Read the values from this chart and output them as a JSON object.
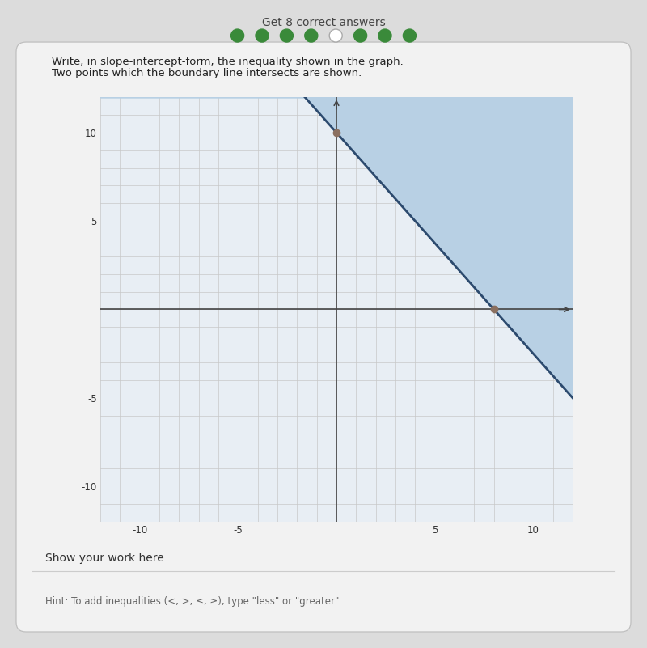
{
  "title_line1": "Write, in slope-intercept-form, the inequality shown in the graph.",
  "title_line2": "Two points which the boundary line intersects are shown.",
  "header_text": "Get 8 correct answers",
  "dots": [
    true,
    true,
    true,
    true,
    false,
    true,
    true,
    true
  ],
  "xlim": [
    -12,
    12
  ],
  "ylim": [
    -12,
    12
  ],
  "xticks": [
    -10,
    -5,
    5,
    10
  ],
  "yticks": [
    -10,
    -5,
    5,
    10
  ],
  "xtick_labels": [
    "-10",
    "-5",
    "5",
    "10"
  ],
  "ytick_labels": [
    "-10",
    "-5",
    "5",
    "10"
  ],
  "slope": -1.25,
  "intercept": 10,
  "point1": [
    0,
    10
  ],
  "point2": [
    8,
    0
  ],
  "shade_color": "#b8d0e4",
  "line_color": "#2c4a6e",
  "point_color": "#8b7060",
  "line_width": 2.0,
  "grid_color": "#c8c8c8",
  "grid_linewidth": 0.5,
  "axis_linewidth": 1.2,
  "bg_outer": "#dcdcdc",
  "bg_card": "#f2f2f2",
  "bg_plot": "#e8eef4",
  "show_work_text": "Show your work here",
  "hint_text": "Hint: To add inequalities (<, >, ≤, ≥), type \"less\" or \"greater\"",
  "dot_filled_color": "#3a8a3a",
  "dot_empty_color": "#ffffff",
  "dot_empty_edge": "#aaaaaa"
}
